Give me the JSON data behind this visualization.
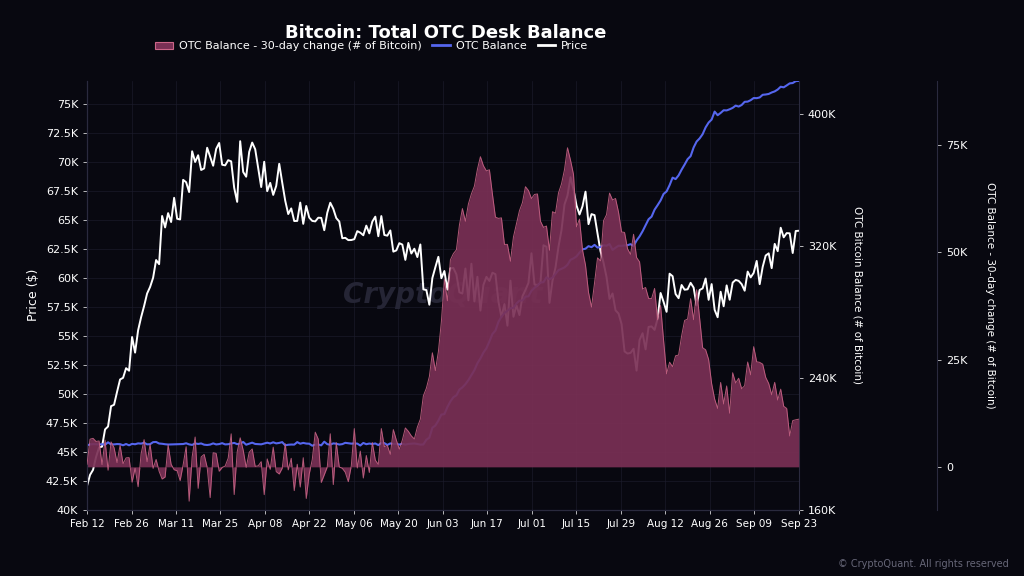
{
  "title": "Bitcoin: Total OTC Desk Balance",
  "bg_color": "#080810",
  "grid_color": "#1c1c2c",
  "text_color": "#ffffff",
  "price_color": "#ffffff",
  "otc_balance_color": "#5566ee",
  "otc_change_color": "#cc6688",
  "otc_change_fill": "#7a3055",
  "ylabel_left": "Price ($)",
  "ylabel_right1": "OTC Bitcoin Balance (# of Bitcoin)",
  "ylabel_right2": "OTC Balance - 30-day change (# of Bitcoin)",
  "copyright": "© CryptoQuant. All rights reserved",
  "watermark": "CryptoQuant",
  "price_ylim": [
    40000,
    77000
  ],
  "price_yticks": [
    40000,
    42500,
    45000,
    47500,
    50000,
    52500,
    55000,
    57500,
    60000,
    62500,
    65000,
    67500,
    70000,
    72500,
    75000
  ],
  "price_ytick_labels": [
    "40K",
    "42.5K",
    "45K",
    "47.5K",
    "50K",
    "52.5K",
    "55K",
    "57.5K",
    "60K",
    "62.5K",
    "65K",
    "67.5K",
    "70K",
    "72.5K",
    "75K"
  ],
  "otc_bal_ylim": [
    160000,
    420000
  ],
  "otc_bal_yticks": [
    160000,
    240000,
    320000,
    400000
  ],
  "otc_bal_ytick_labels": [
    "160K",
    "240K",
    "320K",
    "400K"
  ],
  "otc_change_ylim": [
    -10000,
    90000
  ],
  "otc_change_yticks": [
    0,
    25000,
    50000,
    75000
  ],
  "otc_change_ytick_labels": [
    "0",
    "25K",
    "50K",
    "75K"
  ],
  "xtick_labels": [
    "Feb 12",
    "Feb 26",
    "Mar 11",
    "Mar 25",
    "Apr 08",
    "Apr 22",
    "May 06",
    "May 20",
    "Jun 03",
    "Jun 17",
    "Jul 01",
    "Jul 15",
    "Jul 29",
    "Aug 12",
    "Aug 26",
    "Sep 09",
    "Sep 23"
  ],
  "legend_labels": [
    "OTC Balance - 30-day change (# of Bitcoin)",
    "OTC Balance",
    "Price"
  ]
}
